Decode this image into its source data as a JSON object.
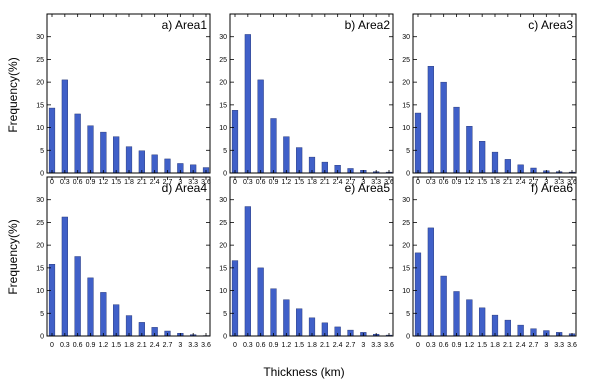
{
  "figure": {
    "xlabel": "Thickness (km)",
    "ylabel": "Frequency(%)"
  },
  "chart_data": [
    {
      "type": "bar",
      "title": "a) Area1",
      "categories": [
        "0",
        "0.3",
        "0.6",
        "0.9",
        "1.2",
        "1.5",
        "1.8",
        "2.1",
        "2.4",
        "2.7",
        "3",
        "3.3",
        "3.6"
      ],
      "values": [
        14.3,
        20.5,
        13.0,
        10.4,
        9.0,
        8.0,
        5.8,
        4.9,
        4.0,
        3.1,
        2.1,
        1.8,
        1.2
      ],
      "ylim": [
        0,
        35
      ],
      "yticks": [
        "0",
        "5",
        "10",
        "15",
        "20",
        "25",
        "30"
      ],
      "color": "#4060c8"
    },
    {
      "type": "bar",
      "title": "b) Area2",
      "categories": [
        "0",
        "0.3",
        "0.6",
        "0.9",
        "1.2",
        "1.5",
        "1.8",
        "2.1",
        "2.4",
        "2.7",
        "3",
        "3.3",
        "3.6"
      ],
      "values": [
        13.8,
        30.5,
        20.5,
        12.0,
        8.0,
        5.6,
        3.5,
        2.4,
        1.7,
        1.0,
        0.6,
        0.3,
        0.2
      ],
      "ylim": [
        0,
        35
      ],
      "yticks": [
        "0",
        "5",
        "10",
        "15",
        "20",
        "25",
        "30"
      ],
      "color": "#4060c8"
    },
    {
      "type": "bar",
      "title": "c) Area3",
      "categories": [
        "0",
        "0.3",
        "0.6",
        "0.9",
        "1.2",
        "1.5",
        "1.8",
        "2.1",
        "2.4",
        "2.7",
        "3",
        "3.3",
        "3.6"
      ],
      "values": [
        13.2,
        23.5,
        20.0,
        14.5,
        10.3,
        7.0,
        4.6,
        3.0,
        1.8,
        1.1,
        0.5,
        0.3,
        0.2
      ],
      "ylim": [
        0,
        35
      ],
      "yticks": [
        "0",
        "5",
        "10",
        "15",
        "20",
        "25",
        "30"
      ],
      "color": "#4060c8"
    },
    {
      "type": "bar",
      "title": "d) Area4",
      "categories": [
        "0",
        "0.3",
        "0.6",
        "0.9",
        "1.2",
        "1.5",
        "1.8",
        "2.1",
        "2.4",
        "2.7",
        "3",
        "3.3",
        "3.6"
      ],
      "values": [
        15.8,
        26.2,
        17.5,
        12.8,
        9.6,
        6.9,
        4.5,
        3.0,
        1.9,
        1.1,
        0.6,
        0.3,
        0.1
      ],
      "ylim": [
        0,
        35
      ],
      "yticks": [
        "0",
        "5",
        "10",
        "15",
        "20",
        "25",
        "30"
      ],
      "color": "#4060c8"
    },
    {
      "type": "bar",
      "title": "e) Area5",
      "categories": [
        "0",
        "0.3",
        "0.6",
        "0.9",
        "1.2",
        "1.5",
        "1.8",
        "2.1",
        "2.4",
        "2.7",
        "3",
        "3.3",
        "3.6"
      ],
      "values": [
        16.6,
        28.5,
        15.0,
        10.4,
        8.0,
        6.0,
        4.0,
        2.9,
        2.0,
        1.3,
        0.8,
        0.4,
        0.2
      ],
      "ylim": [
        0,
        35
      ],
      "yticks": [
        "0",
        "5",
        "10",
        "15",
        "20",
        "25",
        "30"
      ],
      "color": "#4060c8"
    },
    {
      "type": "bar",
      "title": "f) Area6",
      "categories": [
        "0",
        "0.3",
        "0.6",
        "0.9",
        "1.2",
        "1.5",
        "1.8",
        "2.1",
        "2.4",
        "2.7",
        "3",
        "3.3",
        "3.6"
      ],
      "values": [
        18.3,
        23.8,
        13.2,
        9.8,
        8.0,
        6.2,
        4.6,
        3.5,
        2.4,
        1.6,
        1.2,
        0.8,
        0.5
      ],
      "ylim": [
        0,
        35
      ],
      "yticks": [
        "0",
        "5",
        "10",
        "15",
        "20",
        "25",
        "30"
      ],
      "color": "#4060c8"
    }
  ]
}
